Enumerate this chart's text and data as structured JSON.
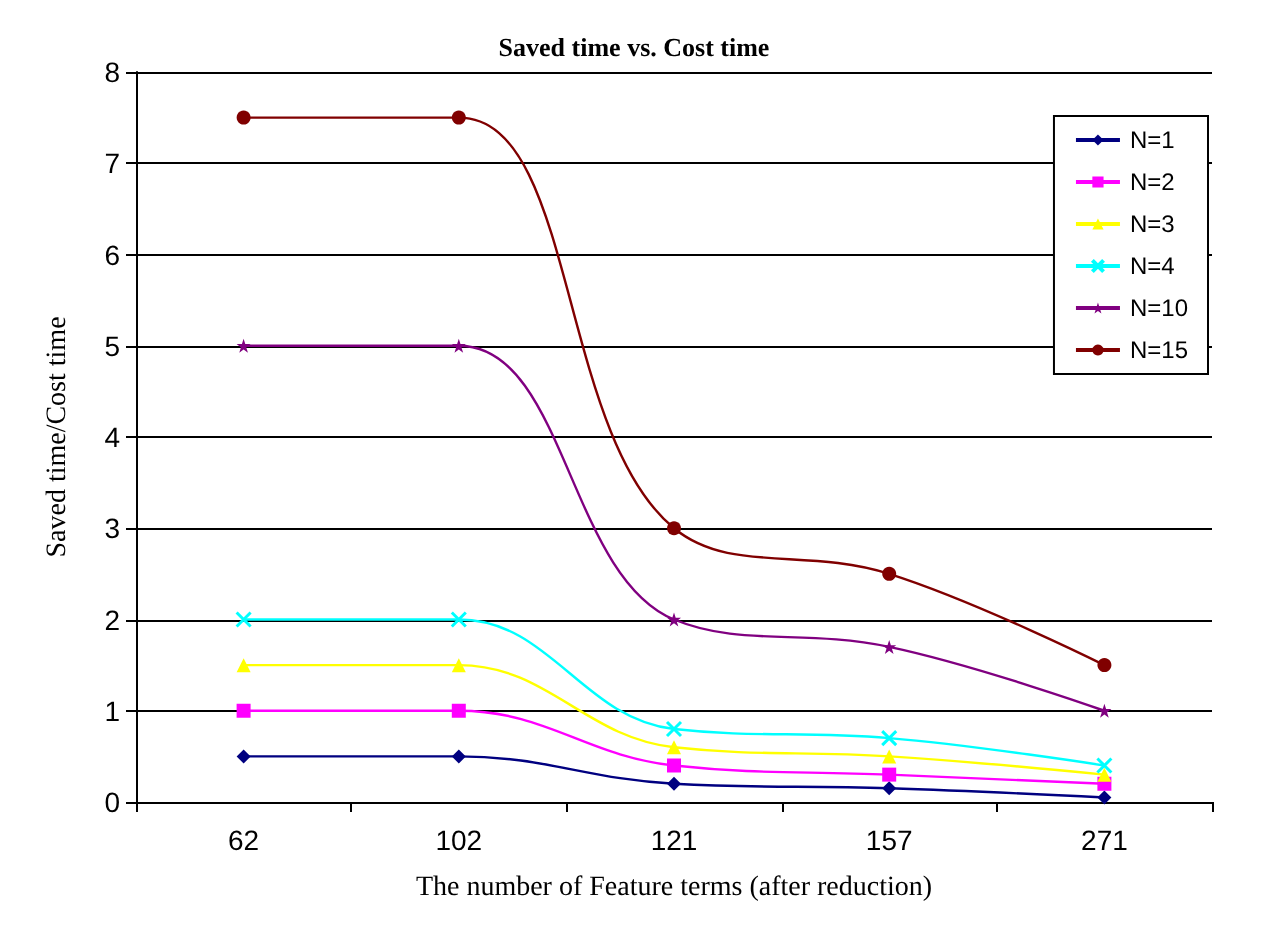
{
  "chart_data": {
    "type": "line",
    "title": "Saved time vs. Cost time",
    "xlabel": "The number of Feature terms (after reduction)",
    "ylabel": "Saved time/Cost time",
    "categories": [
      "62",
      "102",
      "121",
      "157",
      "271"
    ],
    "ylim": [
      0,
      8
    ],
    "yticks": [
      0,
      1,
      2,
      3,
      4,
      5,
      6,
      7,
      8
    ],
    "grid": "y",
    "legend": "top right",
    "series": [
      {
        "name": "N=1",
        "color": "#000080",
        "marker": "diamond",
        "values": [
          0.5,
          0.5,
          0.2,
          0.15,
          0.05
        ]
      },
      {
        "name": "N=2",
        "color": "#ff00ff",
        "marker": "square",
        "values": [
          1,
          1,
          0.4,
          0.3,
          0.2
        ]
      },
      {
        "name": "N=3",
        "color": "#ffff00",
        "marker": "triangle",
        "values": [
          1.5,
          1.5,
          0.6,
          0.5,
          0.3
        ]
      },
      {
        "name": "N=4",
        "color": "#00ffff",
        "marker": "cross",
        "values": [
          2,
          2,
          0.8,
          0.7,
          0.4
        ]
      },
      {
        "name": "N=10",
        "color": "#800080",
        "marker": "star",
        "values": [
          5,
          5,
          2,
          1.7,
          1
        ]
      },
      {
        "name": "N=15",
        "color": "#800000",
        "marker": "circle",
        "values": [
          7.5,
          7.5,
          3,
          2.5,
          1.5
        ]
      }
    ]
  }
}
